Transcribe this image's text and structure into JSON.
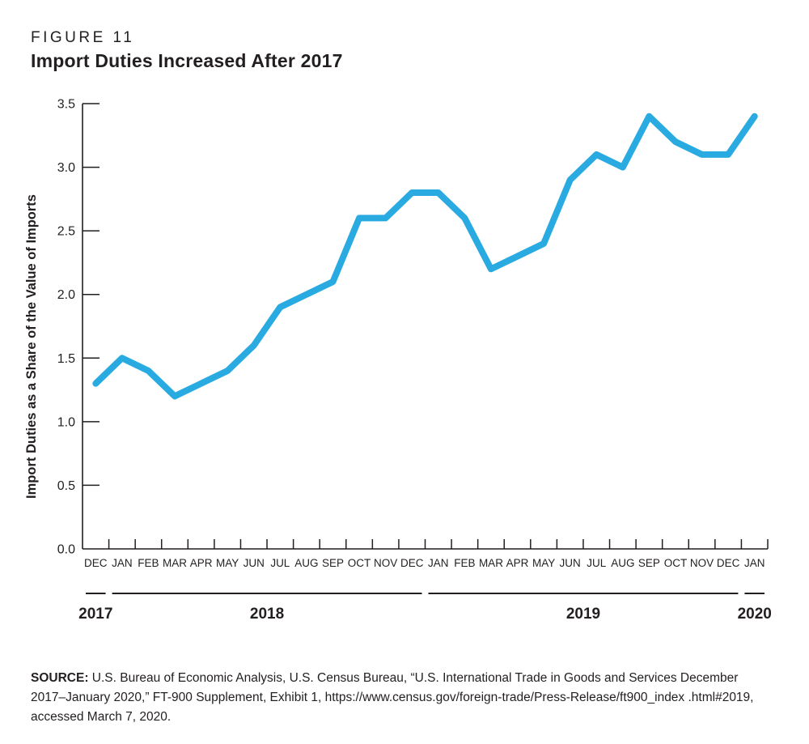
{
  "header": {
    "figure_label": "FIGURE 11",
    "title": "Import Duties Increased After 2017"
  },
  "chart_data": {
    "type": "line",
    "title": "Import Duties Increased After 2017",
    "ylabel": "Import Duties as a Share of the Value of Imports",
    "xlabel": "",
    "ylim": [
      0,
      3.5
    ],
    "ytick_step": 0.5,
    "ytick_labels": [
      "0.0",
      "0.5",
      "1.0",
      "1.5",
      "2.0",
      "2.5",
      "3.0",
      "3.5"
    ],
    "categories": [
      "DEC",
      "JAN",
      "FEB",
      "MAR",
      "APR",
      "MAY",
      "JUN",
      "JUL",
      "AUG",
      "SEP",
      "OCT",
      "NOV",
      "DEC",
      "JAN",
      "FEB",
      "MAR",
      "APR",
      "MAY",
      "JUN",
      "JUL",
      "AUG",
      "SEP",
      "OCT",
      "NOV",
      "DEC",
      "JAN"
    ],
    "values": [
      1.3,
      1.5,
      1.4,
      1.2,
      1.3,
      1.4,
      1.6,
      1.9,
      2.0,
      2.1,
      2.6,
      2.6,
      2.8,
      2.8,
      2.6,
      2.2,
      2.3,
      2.4,
      2.9,
      3.1,
      3.0,
      3.4,
      3.2,
      3.1,
      3.1,
      3.4
    ],
    "years": [
      {
        "label": "2017",
        "start": 0,
        "count": 1
      },
      {
        "label": "2018",
        "start": 1,
        "count": 12
      },
      {
        "label": "2019",
        "start": 13,
        "count": 12
      },
      {
        "label": "2020",
        "start": 25,
        "count": 1
      }
    ],
    "grid": false,
    "legend": "none",
    "line_color": "#29ABE2",
    "axis_color": "#231F20"
  },
  "source": {
    "label": "SOURCE:",
    "text": " U.S. Bureau of Economic Analysis, U.S. Census Bureau, “U.S. International Trade in Goods and Services December 2017–January 2020,” FT-900 Supplement, Exhibit 1, https://www.census.gov/foreign-trade/Press-Release/ft900_index .html#2019, accessed March 7, 2020."
  }
}
